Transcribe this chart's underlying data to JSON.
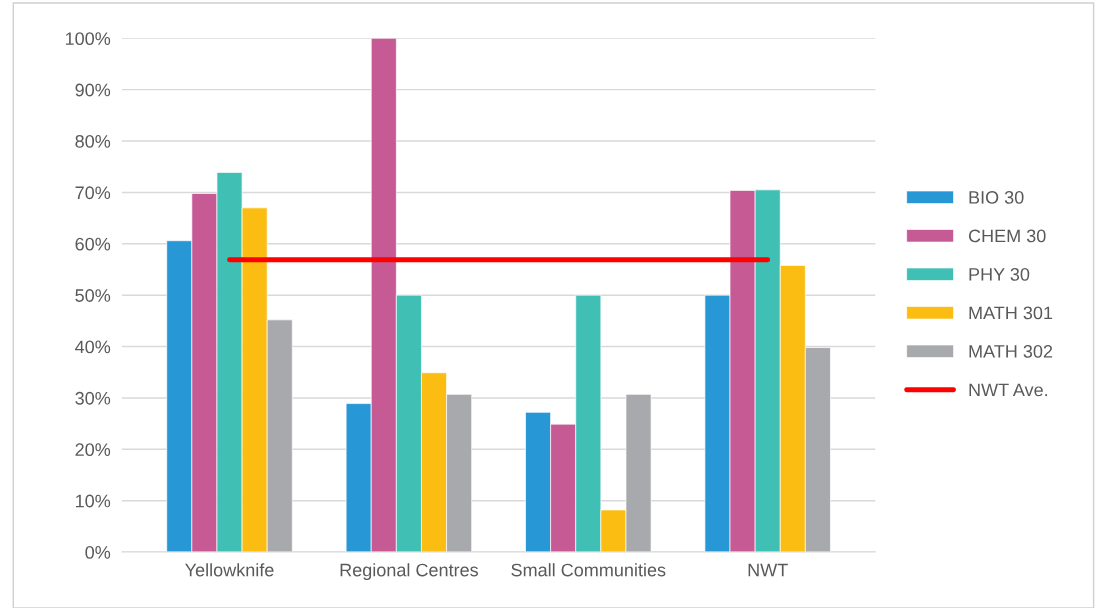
{
  "chart_data": {
    "type": "bar",
    "categories": [
      "Yellowknife",
      "Regional Centres",
      "Small Communities",
      "NWT"
    ],
    "series": [
      {
        "name": "BIO 30",
        "color": "#2897d5",
        "values": [
          60.6,
          28.9,
          27.2,
          50
        ]
      },
      {
        "name": "CHEM 30",
        "color": "#c55a95",
        "values": [
          69.8,
          100,
          24.9,
          70.4
        ]
      },
      {
        "name": "PHY 30",
        "color": "#40bfb4",
        "values": [
          73.9,
          50,
          50,
          70.5
        ]
      },
      {
        "name": "MATH 301",
        "color": "#fcbd13",
        "values": [
          67.0,
          34.9,
          8.2,
          55.8
        ]
      },
      {
        "name": "MATH 302",
        "color": "#a8a9ad",
        "values": [
          45.2,
          30.7,
          30.7,
          39.8
        ]
      },
      {
        "name": "NWT Ave.",
        "type": "line",
        "color": "#ff0000",
        "values": [
          56.9,
          56.9,
          56.9,
          56.9
        ]
      }
    ],
    "ylim": [
      0,
      100
    ],
    "yticks": [
      {
        "value": 0,
        "label": "0%"
      },
      {
        "value": 10,
        "label": "10%"
      },
      {
        "value": 20,
        "label": "20%"
      },
      {
        "value": 30,
        "label": "30%"
      },
      {
        "value": 40,
        "label": "40%"
      },
      {
        "value": 50,
        "label": "50%"
      },
      {
        "value": 60,
        "label": "60%"
      },
      {
        "value": 70,
        "label": "70%"
      },
      {
        "value": 80,
        "label": "80%"
      },
      {
        "value": 90,
        "label": "90%"
      },
      {
        "value": 100,
        "label": "100%"
      }
    ],
    "grid": "y",
    "legend": "right"
  }
}
